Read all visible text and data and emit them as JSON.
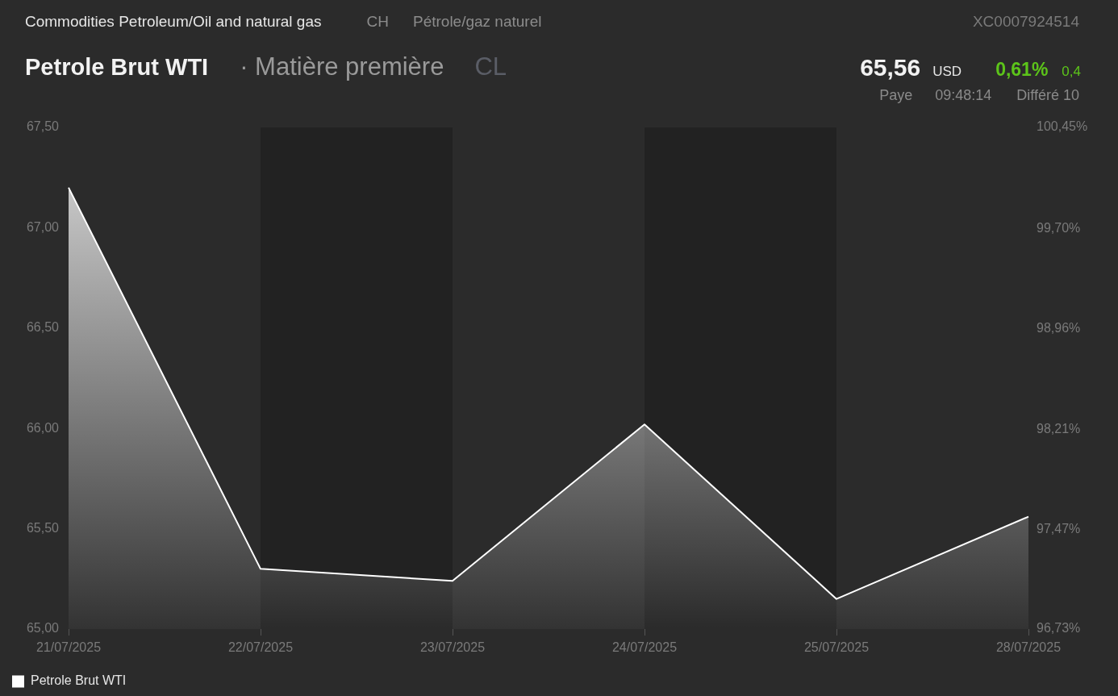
{
  "chart_data": {
    "type": "area",
    "title": "Petrole Brut WTI",
    "subtitle": "· Matière première",
    "annotations": [
      "Commodities Petroleum/Oil and natural gas",
      "CH",
      "Pétrole/gaz naturel",
      "XC0007924514",
      "CL",
      "65,56",
      "USD",
      "0,61%",
      "0,4",
      "Paye",
      "09:48:14",
      "Différé 10"
    ],
    "categories": [
      "21/07/2025",
      "22/07/2025",
      "23/07/2025",
      "24/07/2025",
      "25/07/2025",
      "28/07/2025"
    ],
    "series": [
      {
        "name": "Petrole Brut WTI",
        "color": "#ffffff",
        "values": [
          67.2,
          65.3,
          65.24,
          66.02,
          65.15,
          65.56
        ]
      }
    ],
    "ylim": [
      65,
      67.5
    ],
    "yticks": [
      {
        "value": 65,
        "label": "65,00"
      },
      {
        "value": 65.5,
        "label": "65,50"
      },
      {
        "value": 66,
        "label": "66,00"
      },
      {
        "value": 66.5,
        "label": "66,50"
      },
      {
        "value": 67,
        "label": "67,00"
      },
      {
        "value": 67.5,
        "label": "67,50"
      }
    ],
    "y2lim": [
      96.73,
      100.45
    ],
    "y2ticks": [
      {
        "value": 96.73,
        "label": "96,73%"
      },
      {
        "value": 97.47,
        "label": "97,47%"
      },
      {
        "value": 98.21,
        "label": "98,21%"
      },
      {
        "value": 98.96,
        "label": "98,96%"
      },
      {
        "value": 99.7,
        "label": "99,70%"
      },
      {
        "value": 100.45,
        "label": "100,45%"
      }
    ],
    "bands": [
      {
        "axis": "x",
        "from": "22/07/2025",
        "to": "23/07/2025",
        "color": "#222222"
      },
      {
        "axis": "x",
        "from": "24/07/2025",
        "to": "25/07/2025",
        "color": "#222222"
      }
    ],
    "legend": "bottom left",
    "marker": "none"
  }
}
